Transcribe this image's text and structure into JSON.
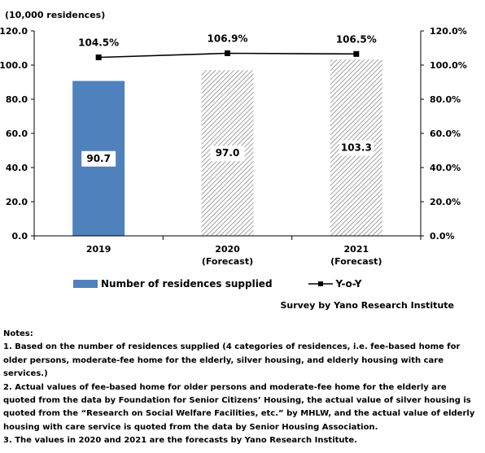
{
  "chart_data": {
    "type": "bar",
    "unit_label": "(10,000 residences)",
    "categories": [
      [
        "2019"
      ],
      [
        "2020",
        "(Forecast)"
      ],
      [
        "2021",
        "(Forecast)"
      ]
    ],
    "series": [
      {
        "name": "Number of residences supplied",
        "type": "bar",
        "values": [
          90.7,
          97.0,
          103.3
        ],
        "value_labels": [
          "90.7",
          "97.0",
          "103.3"
        ],
        "styles": [
          "solid",
          "hatched",
          "hatched"
        ],
        "color": "#4f81bd"
      },
      {
        "name": "Y-o-Y",
        "type": "line",
        "axis": "right",
        "values": [
          104.5,
          106.9,
          106.5
        ],
        "value_labels": [
          "104.5%",
          "106.9%",
          "106.5%"
        ],
        "color": "#000000"
      }
    ],
    "y_left": {
      "range": [
        0,
        120
      ],
      "ticks": [
        "0.0",
        "20.0",
        "40.0",
        "60.0",
        "80.0",
        "100.0",
        "120.0"
      ]
    },
    "y_right": {
      "range": [
        0,
        120
      ],
      "ticks": [
        "0.0%",
        "20.0%",
        "40.0%",
        "60.0%",
        "80.0%",
        "100.0%",
        "120.0%"
      ]
    },
    "grid": false,
    "legend_position": "bottom"
  },
  "source": "Survey by Yano Research Institute",
  "notes": {
    "title": "Notes:",
    "items": [
      "1. Based on the number of residences supplied (4 categories of residences, i.e. fee-based home for older persons, moderate-fee home for the elderly, silver housing, and elderly housing with care services.)",
      "2. Actual values of fee-based home for older persons and moderate-fee home for the elderly are quoted from the data by Foundation for Senior Citizens’ Housing, the actual value of silver housing is quoted from the “Research on Social Welfare Facilities, etc.” by MHLW, and the actual value of elderly housing with care service is quoted from the data by Senior Housing Association.",
      "3. The values in 2020 and 2021 are the forecasts by Yano Research Institute."
    ]
  }
}
